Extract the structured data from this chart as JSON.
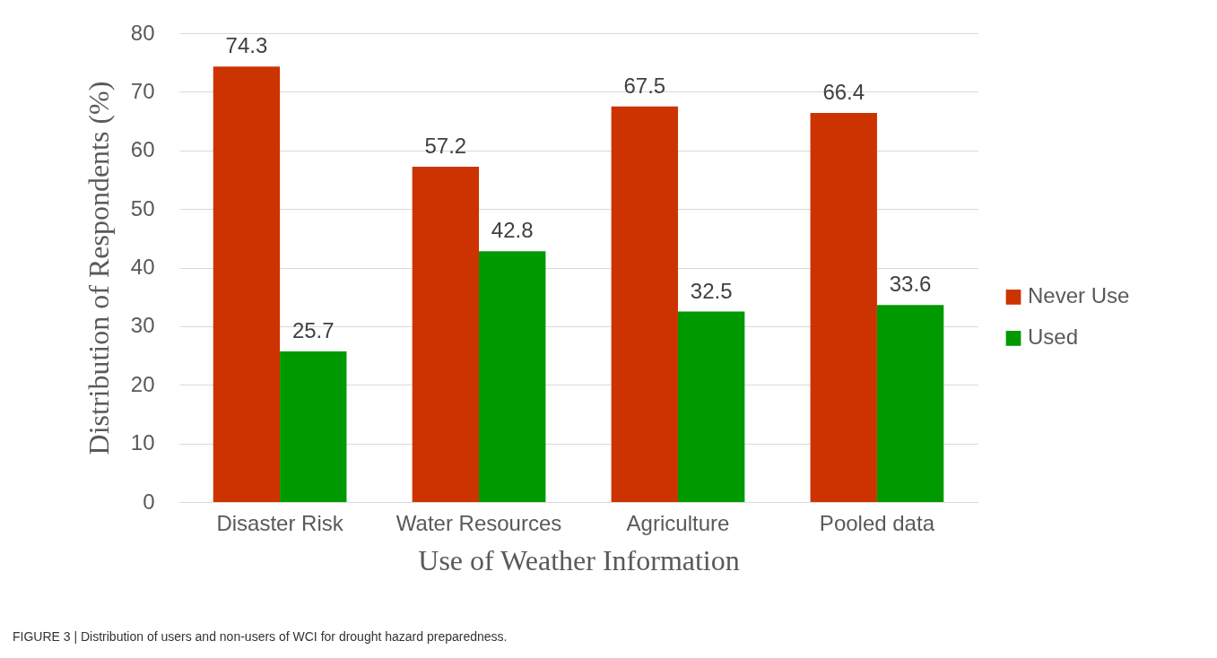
{
  "chart_data": {
    "type": "bar",
    "xlabel": "Use of Weather Information",
    "ylabel": "Distribution of Respondents (%)",
    "categories": [
      "Disaster Risk",
      "Water Resources",
      "Agriculture",
      "Pooled data"
    ],
    "series": [
      {
        "name": "Never Use",
        "color": "#cc3300",
        "values": [
          74.3,
          57.2,
          67.5,
          66.4
        ]
      },
      {
        "name": "Used",
        "color": "#009900",
        "values": [
          25.7,
          42.8,
          32.5,
          33.6
        ]
      }
    ],
    "ylim": [
      0,
      80
    ],
    "yticks": [
      0,
      10,
      20,
      30,
      40,
      50,
      60,
      70,
      80
    ],
    "grid": "y",
    "legend": "right",
    "data_labels": true,
    "annotations": [
      "FIGURE 3 | Distribution of users and non-users of WCI for drought hazard preparedness."
    ]
  }
}
